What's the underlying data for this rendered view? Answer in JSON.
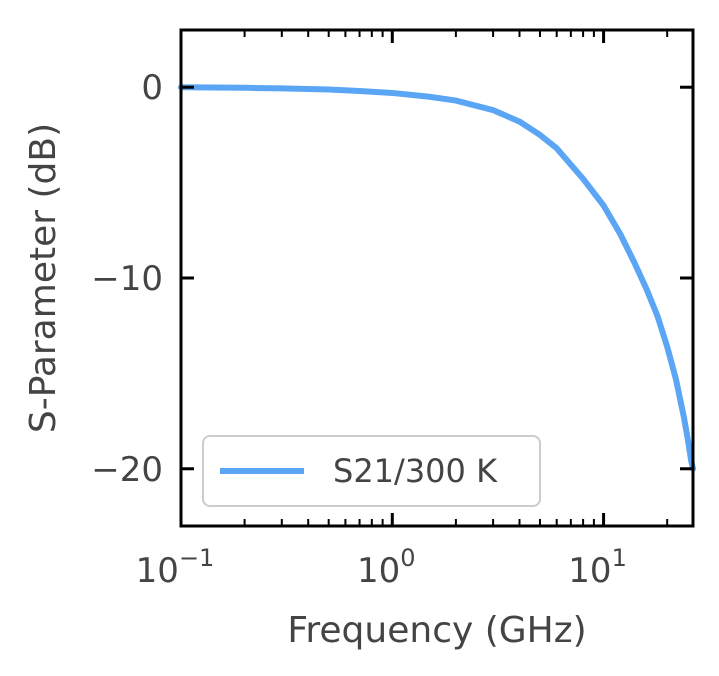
{
  "chart_data": {
    "type": "line",
    "xlabel": "Frequency (GHz)",
    "ylabel": "S-Parameter (dB)",
    "xscale": "log",
    "xlim": [
      0.1,
      26.5
    ],
    "ylim": [
      -23,
      3
    ],
    "x_ticks": [
      {
        "value": 0.1,
        "base": "10",
        "exp": "−1"
      },
      {
        "value": 1,
        "base": "10",
        "exp": "0"
      },
      {
        "value": 10,
        "base": "10",
        "exp": "1"
      }
    ],
    "y_ticks": [
      {
        "value": 0,
        "label": "0"
      },
      {
        "value": -10,
        "label": "−10"
      },
      {
        "value": -20,
        "label": "−20"
      }
    ],
    "grid": false,
    "legend_position": "lower-left",
    "series": [
      {
        "name": "S21/300 K",
        "color": "#5aa6f5",
        "x": [
          0.1,
          0.2,
          0.3,
          0.5,
          0.7,
          1.0,
          1.5,
          2.0,
          3.0,
          4.0,
          5.0,
          6.0,
          8.0,
          10.0,
          12.0,
          14.0,
          16.0,
          18.0,
          20.0,
          22.0,
          24.0,
          25.0,
          26.0,
          26.5
        ],
        "y": [
          0.0,
          -0.03,
          -0.06,
          -0.12,
          -0.2,
          -0.3,
          -0.5,
          -0.7,
          -1.2,
          -1.8,
          -2.5,
          -3.2,
          -4.8,
          -6.2,
          -7.7,
          -9.2,
          -10.6,
          -12.0,
          -13.6,
          -15.3,
          -17.3,
          -18.4,
          -19.6,
          -20.0
        ]
      }
    ]
  }
}
